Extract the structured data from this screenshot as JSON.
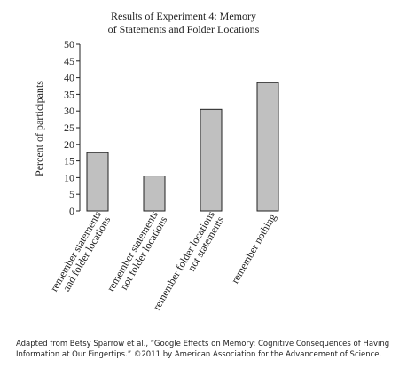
{
  "chart_data": {
    "type": "bar",
    "title": [
      "Results of Experiment 4: Memory",
      "of Statements and Folder Locations"
    ],
    "y_label": "Percent of participants",
    "categories": [
      [
        "remember statements",
        "and folder locations"
      ],
      [
        "remember statements",
        "not folder locations"
      ],
      [
        "remember folder locations",
        "not statements"
      ],
      [
        "remember nothing"
      ]
    ],
    "values": [
      17.5,
      10.5,
      30.5,
      38.5
    ],
    "color": "#c0c0c0",
    "ylim": [
      0,
      50
    ],
    "yticks": [
      0,
      5,
      10,
      15,
      20,
      25,
      30,
      35,
      40,
      45,
      50
    ],
    "grid": false
  },
  "source": [
    "Adapted from Betsy Sparrow et al., “Google Effects on Memory: Cognitive Consequences of Having",
    "Information at Our Fingertips.” ©2011 by American Association for the Advancement of Science."
  ]
}
